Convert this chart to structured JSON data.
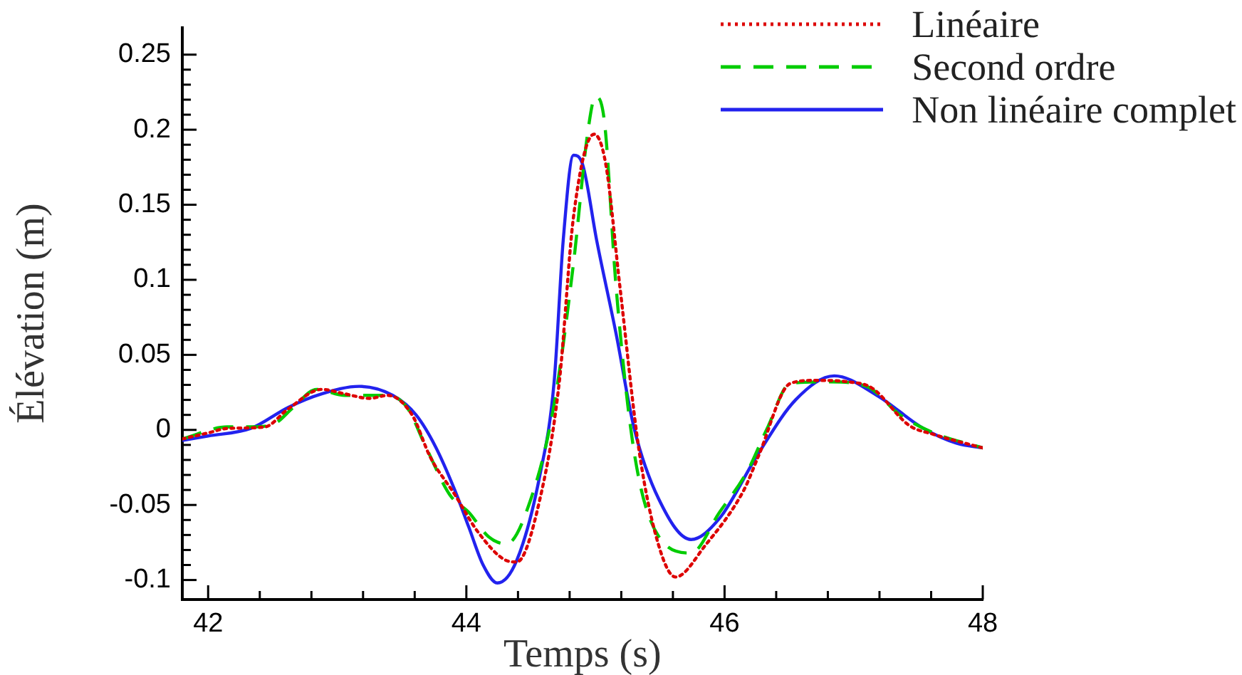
{
  "chart_data": {
    "type": "line",
    "xlabel": "Temps (s)",
    "ylabel": "Élévation (m)",
    "xlim": [
      41.8,
      48
    ],
    "ylim": [
      -0.113,
      0.268
    ],
    "xticks": [
      42,
      {
        "value": 42.4,
        "label": null
      },
      {
        "value": 42.8,
        "label": null
      },
      {
        "value": 43.2,
        "label": null
      },
      {
        "value": 43.6,
        "label": null
      },
      44,
      {
        "value": 44.4,
        "label": null
      },
      {
        "value": 44.8,
        "label": null
      },
      {
        "value": 45.2,
        "label": null
      },
      {
        "value": 45.6,
        "label": null
      },
      46,
      {
        "value": 46.4,
        "label": null
      },
      {
        "value": 46.8,
        "label": null
      },
      {
        "value": 47.2,
        "label": null
      },
      {
        "value": 47.6,
        "label": null
      },
      48
    ],
    "yticks": [
      -0.1,
      {
        "value": -0.09,
        "label": null
      },
      {
        "value": -0.08,
        "label": null
      },
      {
        "value": -0.07,
        "label": null
      },
      {
        "value": -0.06,
        "label": null
      },
      -0.05,
      {
        "value": -0.04,
        "label": null
      },
      {
        "value": -0.03,
        "label": null
      },
      {
        "value": -0.02,
        "label": null
      },
      {
        "value": -0.01,
        "label": null
      },
      0,
      {
        "value": 0.01,
        "label": null
      },
      {
        "value": 0.02,
        "label": null
      },
      {
        "value": 0.03,
        "label": null
      },
      {
        "value": 0.04,
        "label": null
      },
      0.05,
      {
        "value": 0.06,
        "label": null
      },
      {
        "value": 0.07,
        "label": null
      },
      {
        "value": 0.08,
        "label": null
      },
      {
        "value": 0.09,
        "label": null
      },
      0.1,
      {
        "value": 0.11,
        "label": null
      },
      {
        "value": 0.12,
        "label": null
      },
      {
        "value": 0.13,
        "label": null
      },
      {
        "value": 0.14,
        "label": null
      },
      0.15,
      {
        "value": 0.16,
        "label": null
      },
      {
        "value": 0.17,
        "label": null
      },
      {
        "value": 0.18,
        "label": null
      },
      {
        "value": 0.19,
        "label": null
      },
      0.2,
      {
        "value": 0.21,
        "label": null
      },
      {
        "value": 0.22,
        "label": null
      },
      {
        "value": 0.23,
        "label": null
      },
      {
        "value": 0.24,
        "label": null
      },
      0.25
    ],
    "grid": false,
    "legend": "top right",
    "marker": "none",
    "series": [
      {
        "name": "Linéaire",
        "color": "#dd0000",
        "line_style": "dotted",
        "x": [
          41.8,
          42.0,
          42.15,
          42.44,
          42.62,
          42.88,
          43.06,
          43.25,
          43.39,
          43.58,
          43.72,
          43.91,
          44.09,
          44.31,
          44.39,
          44.57,
          44.72,
          44.83,
          44.99,
          45.08,
          45.19,
          45.34,
          45.49,
          45.62,
          45.85,
          46.15,
          46.26,
          46.51,
          46.7,
          46.96,
          47.14,
          47.43,
          47.62,
          48.0
        ],
        "values": [
          -0.006,
          -0.002,
          0.001,
          0.002,
          0.014,
          0.027,
          0.024,
          0.021,
          0.023,
          0.01,
          -0.018,
          -0.043,
          -0.068,
          -0.087,
          -0.088,
          -0.046,
          0.032,
          0.142,
          0.197,
          0.177,
          0.095,
          -0.015,
          -0.077,
          -0.098,
          -0.077,
          -0.04,
          -0.018,
          0.031,
          0.033,
          0.032,
          0.028,
          0.003,
          -0.003,
          -0.012
        ]
      },
      {
        "name": "Second ordre",
        "color": "#00cc00",
        "line_style": "dashed",
        "x": [
          41.8,
          42.15,
          42.33,
          42.51,
          42.66,
          42.84,
          43.06,
          43.39,
          43.54,
          43.69,
          43.87,
          44.02,
          44.17,
          44.31,
          44.5,
          44.68,
          44.83,
          44.94,
          45.0,
          45.07,
          45.16,
          45.3,
          45.49,
          45.74,
          45.96,
          46.18,
          46.33,
          46.51,
          46.81,
          47.1,
          47.36,
          47.62,
          48.0
        ],
        "values": [
          -0.006,
          0.002,
          0.002,
          0.004,
          0.015,
          0.027,
          0.023,
          0.023,
          0.015,
          -0.012,
          -0.043,
          -0.055,
          -0.071,
          -0.076,
          -0.046,
          0.017,
          0.111,
          0.198,
          0.222,
          0.205,
          0.095,
          -0.015,
          -0.071,
          -0.082,
          -0.055,
          -0.027,
          0.001,
          0.031,
          0.032,
          0.029,
          0.01,
          -0.002,
          -0.012
        ]
      },
      {
        "name": "Non linéaire complet",
        "color": "#2222ee",
        "line_style": "solid",
        "x": [
          41.8,
          42.0,
          42.33,
          42.62,
          42.88,
          43.17,
          43.43,
          43.61,
          43.76,
          43.91,
          44.02,
          44.13,
          44.24,
          44.39,
          44.57,
          44.68,
          44.75,
          44.83,
          44.9,
          45.01,
          45.16,
          45.3,
          45.49,
          45.74,
          45.96,
          46.26,
          46.55,
          46.85,
          47.18,
          47.54,
          47.8,
          48.0
        ],
        "values": [
          -0.007,
          -0.004,
          0.001,
          0.015,
          0.024,
          0.029,
          0.023,
          0.01,
          -0.011,
          -0.04,
          -0.065,
          -0.09,
          -0.102,
          -0.087,
          -0.03,
          0.032,
          0.126,
          0.183,
          0.177,
          0.126,
          0.064,
          0.001,
          -0.046,
          -0.073,
          -0.059,
          -0.016,
          0.02,
          0.036,
          0.023,
          0.001,
          -0.009,
          -0.012
        ]
      }
    ]
  }
}
